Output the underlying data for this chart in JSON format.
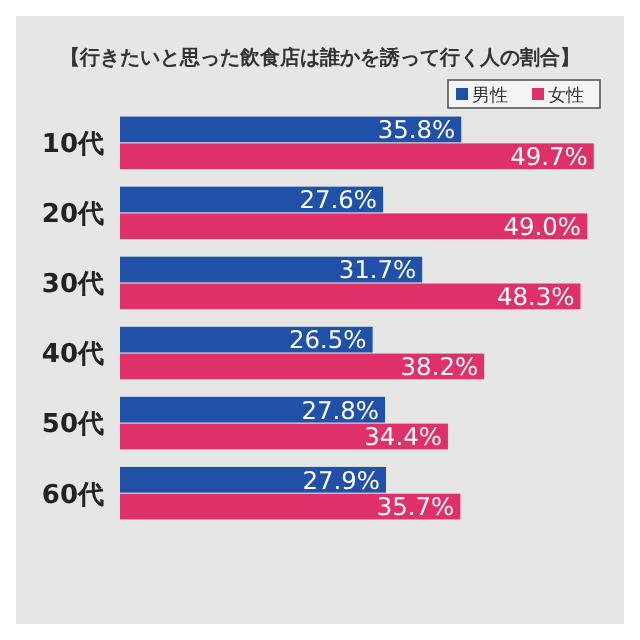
{
  "chart_data": {
    "type": "bar",
    "orientation": "horizontal",
    "title": "【行きたいと思った飲食店は誰かを誘って行く人の割合】",
    "categories": [
      "10代",
      "20代",
      "30代",
      "40代",
      "50代",
      "60代"
    ],
    "series": [
      {
        "name": "男性",
        "color": "#2050a8",
        "values": [
          35.8,
          27.6,
          31.7,
          26.5,
          27.8,
          27.9
        ],
        "value_labels": [
          "35.8%",
          "27.6%",
          "31.7%",
          "26.5%",
          "27.8%",
          "27.9%"
        ]
      },
      {
        "name": "女性",
        "color": "#e0306a",
        "values": [
          49.7,
          49.0,
          48.3,
          38.2,
          34.4,
          35.7
        ],
        "value_labels": [
          "49.7%",
          "49.0%",
          "48.3%",
          "38.2%",
          "34.4%",
          "35.7%"
        ]
      }
    ],
    "legend": "top right"
  }
}
